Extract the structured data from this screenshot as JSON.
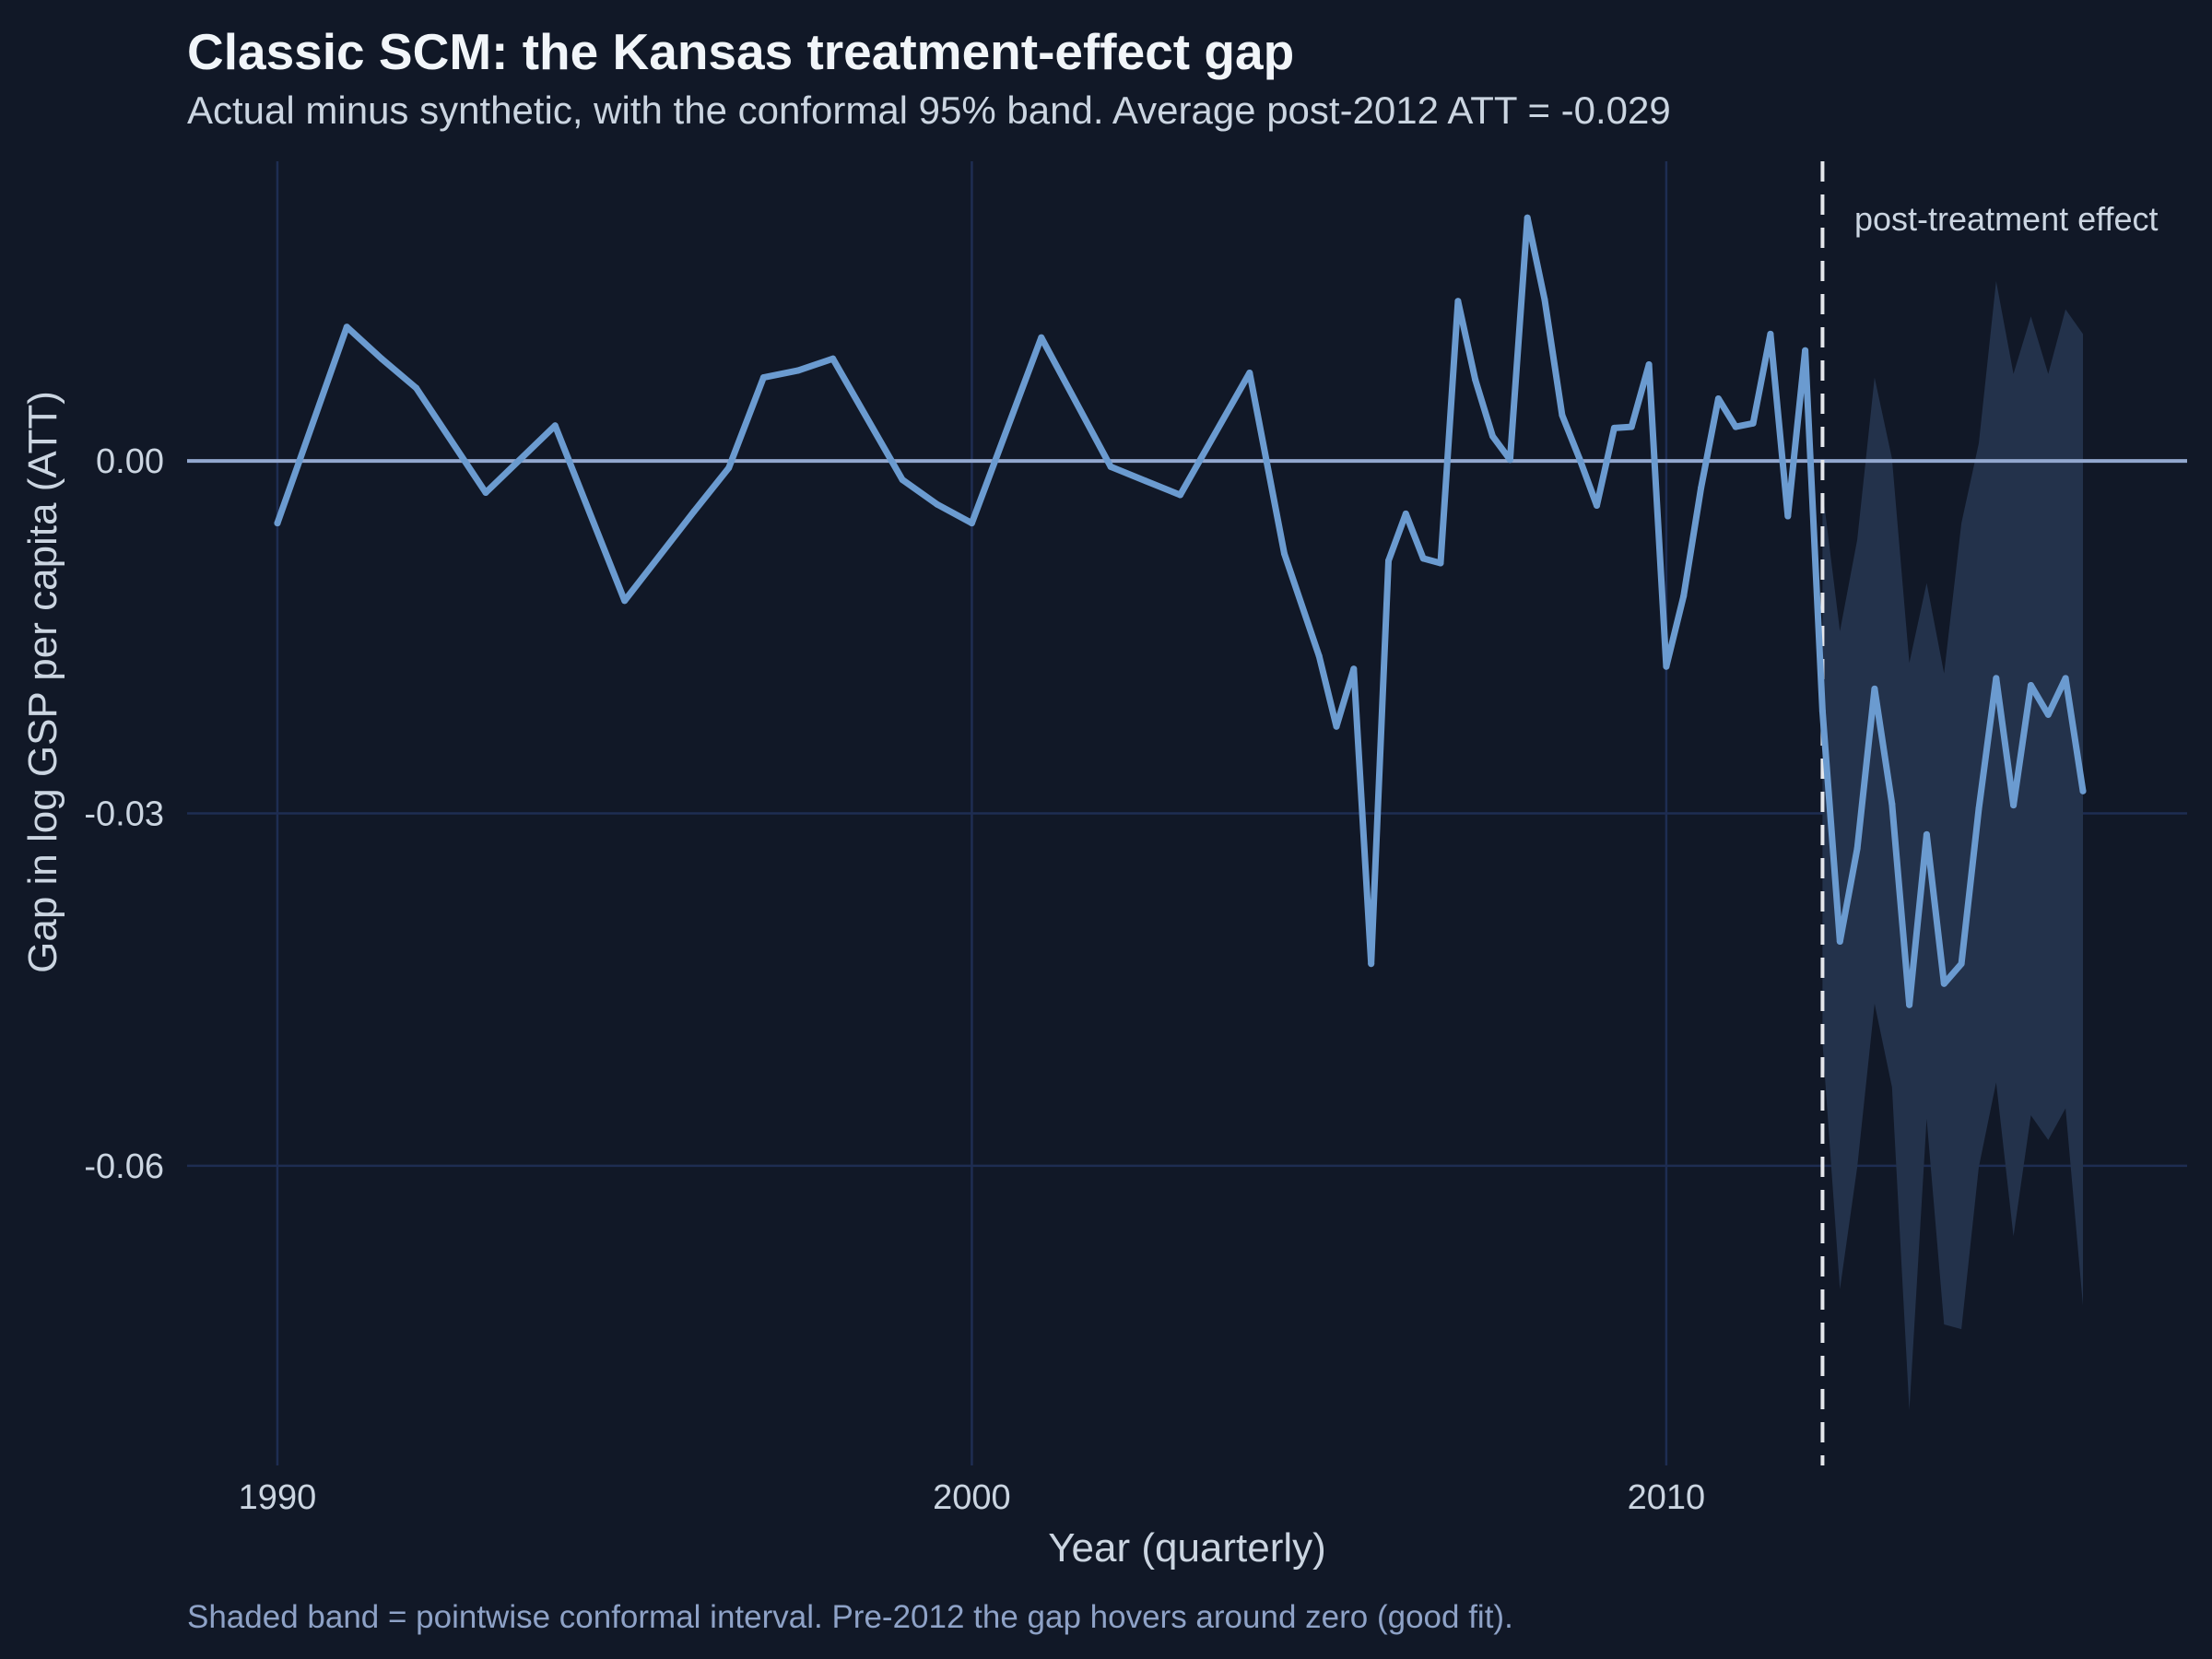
{
  "chart_data": {
    "type": "line",
    "title": "Classic SCM: the Kansas treatment-effect gap",
    "subtitle": "Actual minus synthetic, with the conformal 95% band. Average post-2012 ATT = -0.029",
    "caption": "Shaded band = pointwise conformal interval. Pre-2012 the gap hovers around zero (good fit).",
    "xlabel": "Year (quarterly)",
    "ylabel": "Gap in log GSP per capita (ATT)",
    "xlim": [
      1988.7,
      2017.5
    ],
    "ylim": [
      -0.0855,
      0.0255
    ],
    "x_ticks": [
      1990,
      2000,
      2010
    ],
    "x_tick_labels": [
      "1990",
      "2000",
      "2010"
    ],
    "y_ticks": [
      0.0,
      -0.03,
      -0.06
    ],
    "y_tick_labels": [
      "0.00",
      "-0.03",
      "-0.06"
    ],
    "grid": true,
    "treatment_year": 2012.25,
    "annotation": "post-treatment effect",
    "colors": {
      "background": "#111827",
      "grid": "#1e2d52",
      "line": "#6b9bd0",
      "zero_line": "#93a8cf",
      "band": "#23324b",
      "vline": "#e5e7eb"
    },
    "series": [
      {
        "values": [
          {
            "x": 1990.0,
            "y": -0.0053
          },
          {
            "x": 1991.0,
            "y": 0.0114
          },
          {
            "x": 1991.5,
            "y": 0.0087
          },
          {
            "x": 1992.0,
            "y": 0.0062
          },
          {
            "x": 1993.0,
            "y": -0.0027
          },
          {
            "x": 1994.0,
            "y": 0.003
          },
          {
            "x": 1995.0,
            "y": -0.0119
          },
          {
            "x": 1996.0,
            "y": -0.0043
          },
          {
            "x": 1996.5,
            "y": -0.0006
          },
          {
            "x": 1997.0,
            "y": 0.0071
          },
          {
            "x": 1997.5,
            "y": 0.0077
          },
          {
            "x": 1998.0,
            "y": 0.0087
          },
          {
            "x": 1999.0,
            "y": -0.0016
          },
          {
            "x": 1999.5,
            "y": -0.0037
          },
          {
            "x": 2000.0,
            "y": -0.0053
          },
          {
            "x": 2001.0,
            "y": 0.0105
          },
          {
            "x": 2002.0,
            "y": -0.0005
          },
          {
            "x": 2002.5,
            "y": -0.0017
          },
          {
            "x": 2003.0,
            "y": -0.0029
          },
          {
            "x": 2004.0,
            "y": 0.0075
          },
          {
            "x": 2004.5,
            "y": -0.0079
          },
          {
            "x": 2005.0,
            "y": -0.0166
          },
          {
            "x": 2005.25,
            "y": -0.0226
          },
          {
            "x": 2005.5,
            "y": -0.0177
          },
          {
            "x": 2005.75,
            "y": -0.0428
          },
          {
            "x": 2006.0,
            "y": -0.0085
          },
          {
            "x": 2006.25,
            "y": -0.0045
          },
          {
            "x": 2006.5,
            "y": -0.0083
          },
          {
            "x": 2006.75,
            "y": -0.0087
          },
          {
            "x": 2007.0,
            "y": 0.0136
          },
          {
            "x": 2007.25,
            "y": 0.0069
          },
          {
            "x": 2007.5,
            "y": 0.0021
          },
          {
            "x": 2007.75,
            "y": 0.0001
          },
          {
            "x": 2008.0,
            "y": 0.0207
          },
          {
            "x": 2008.25,
            "y": 0.0137
          },
          {
            "x": 2008.5,
            "y": 0.0039
          },
          {
            "x": 2008.75,
            "y": 0.0002
          },
          {
            "x": 2009.0,
            "y": -0.0038
          },
          {
            "x": 2009.25,
            "y": 0.0028
          },
          {
            "x": 2009.5,
            "y": 0.0029
          },
          {
            "x": 2009.75,
            "y": 0.0082
          },
          {
            "x": 2010.0,
            "y": -0.0175
          },
          {
            "x": 2010.25,
            "y": -0.0115
          },
          {
            "x": 2010.5,
            "y": -0.0023
          },
          {
            "x": 2010.75,
            "y": 0.0053
          },
          {
            "x": 2011.0,
            "y": 0.0029
          },
          {
            "x": 2011.25,
            "y": 0.0032
          },
          {
            "x": 2011.5,
            "y": 0.0108
          },
          {
            "x": 2011.75,
            "y": -0.0047
          },
          {
            "x": 2012.0,
            "y": 0.0094
          },
          {
            "x": 2012.25,
            "y": -0.0213
          },
          {
            "x": 2012.5,
            "y": -0.0409
          },
          {
            "x": 2012.75,
            "y": -0.033
          },
          {
            "x": 2013.0,
            "y": -0.0194
          },
          {
            "x": 2013.25,
            "y": -0.0292
          },
          {
            "x": 2013.5,
            "y": -0.0463
          },
          {
            "x": 2013.75,
            "y": -0.0318
          },
          {
            "x": 2014.0,
            "y": -0.0445
          },
          {
            "x": 2014.25,
            "y": -0.0428
          },
          {
            "x": 2014.5,
            "y": -0.0296
          },
          {
            "x": 2014.75,
            "y": -0.0185
          },
          {
            "x": 2015.0,
            "y": -0.0293
          },
          {
            "x": 2015.25,
            "y": -0.0191
          },
          {
            "x": 2015.5,
            "y": -0.0216
          },
          {
            "x": 2015.75,
            "y": -0.0185
          },
          {
            "x": 2016.0,
            "y": -0.0281
          }
        ]
      }
    ],
    "band": [
      {
        "x": 2012.25,
        "lo": -0.0495,
        "hi": -0.0025
      },
      {
        "x": 2012.5,
        "lo": -0.0705,
        "hi": -0.0145
      },
      {
        "x": 2012.75,
        "lo": -0.0601,
        "hi": -0.0067
      },
      {
        "x": 2013.0,
        "lo": -0.0462,
        "hi": 0.0071
      },
      {
        "x": 2013.25,
        "lo": -0.0533,
        "hi": 0.0002
      },
      {
        "x": 2013.5,
        "lo": -0.0808,
        "hi": -0.0172
      },
      {
        "x": 2013.75,
        "lo": -0.056,
        "hi": -0.0104
      },
      {
        "x": 2014.0,
        "lo": -0.0735,
        "hi": -0.0181
      },
      {
        "x": 2014.25,
        "lo": -0.0739,
        "hi": -0.0053
      },
      {
        "x": 2014.5,
        "lo": -0.0601,
        "hi": 0.0015
      },
      {
        "x": 2014.75,
        "lo": -0.0529,
        "hi": 0.0153
      },
      {
        "x": 2015.0,
        "lo": -0.066,
        "hi": 0.0074
      },
      {
        "x": 2015.25,
        "lo": -0.0557,
        "hi": 0.0123
      },
      {
        "x": 2015.5,
        "lo": -0.0578,
        "hi": 0.0074
      },
      {
        "x": 2015.75,
        "lo": -0.0551,
        "hi": 0.0129
      },
      {
        "x": 2016.0,
        "lo": -0.0719,
        "hi": 0.0108
      }
    ]
  }
}
